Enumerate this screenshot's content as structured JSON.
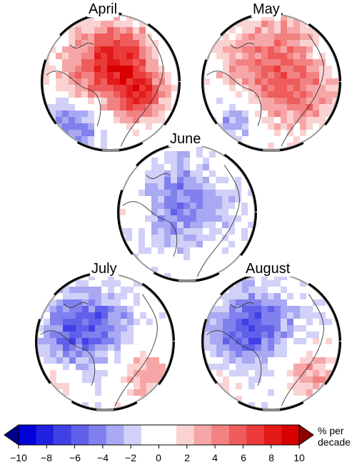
{
  "panels": [
    {
      "id": "april",
      "title": "April",
      "pattern": "strong_positive"
    },
    {
      "id": "may",
      "title": "May",
      "pattern": "positive"
    },
    {
      "id": "june",
      "title": "June",
      "pattern": "weak_negative"
    },
    {
      "id": "july",
      "title": "July",
      "pattern": "negative_west"
    },
    {
      "id": "august",
      "title": "August",
      "pattern": "negative_west"
    }
  ],
  "colorbar": {
    "unit_line1": "% per",
    "unit_line2": "decade",
    "min": -10,
    "max": 10,
    "extend": "both",
    "tick_labels": [
      "−10",
      "−8",
      "−6",
      "−4",
      "−2",
      "0",
      "2",
      "4",
      "6",
      "8",
      "10"
    ],
    "colors": [
      "#0000d8",
      "#2020e0",
      "#4040e6",
      "#6060ea",
      "#8080ee",
      "#a8a8f3",
      "#d0d0f8",
      "#ffffff",
      "#ffffff",
      "#fbd2d2",
      "#f6a6a6",
      "#f28282",
      "#ee5c5c",
      "#ea3a3a",
      "#e41a1a",
      "#d80000"
    ],
    "low_extend_color": "#00008a",
    "high_extend_color": "#900000"
  }
}
